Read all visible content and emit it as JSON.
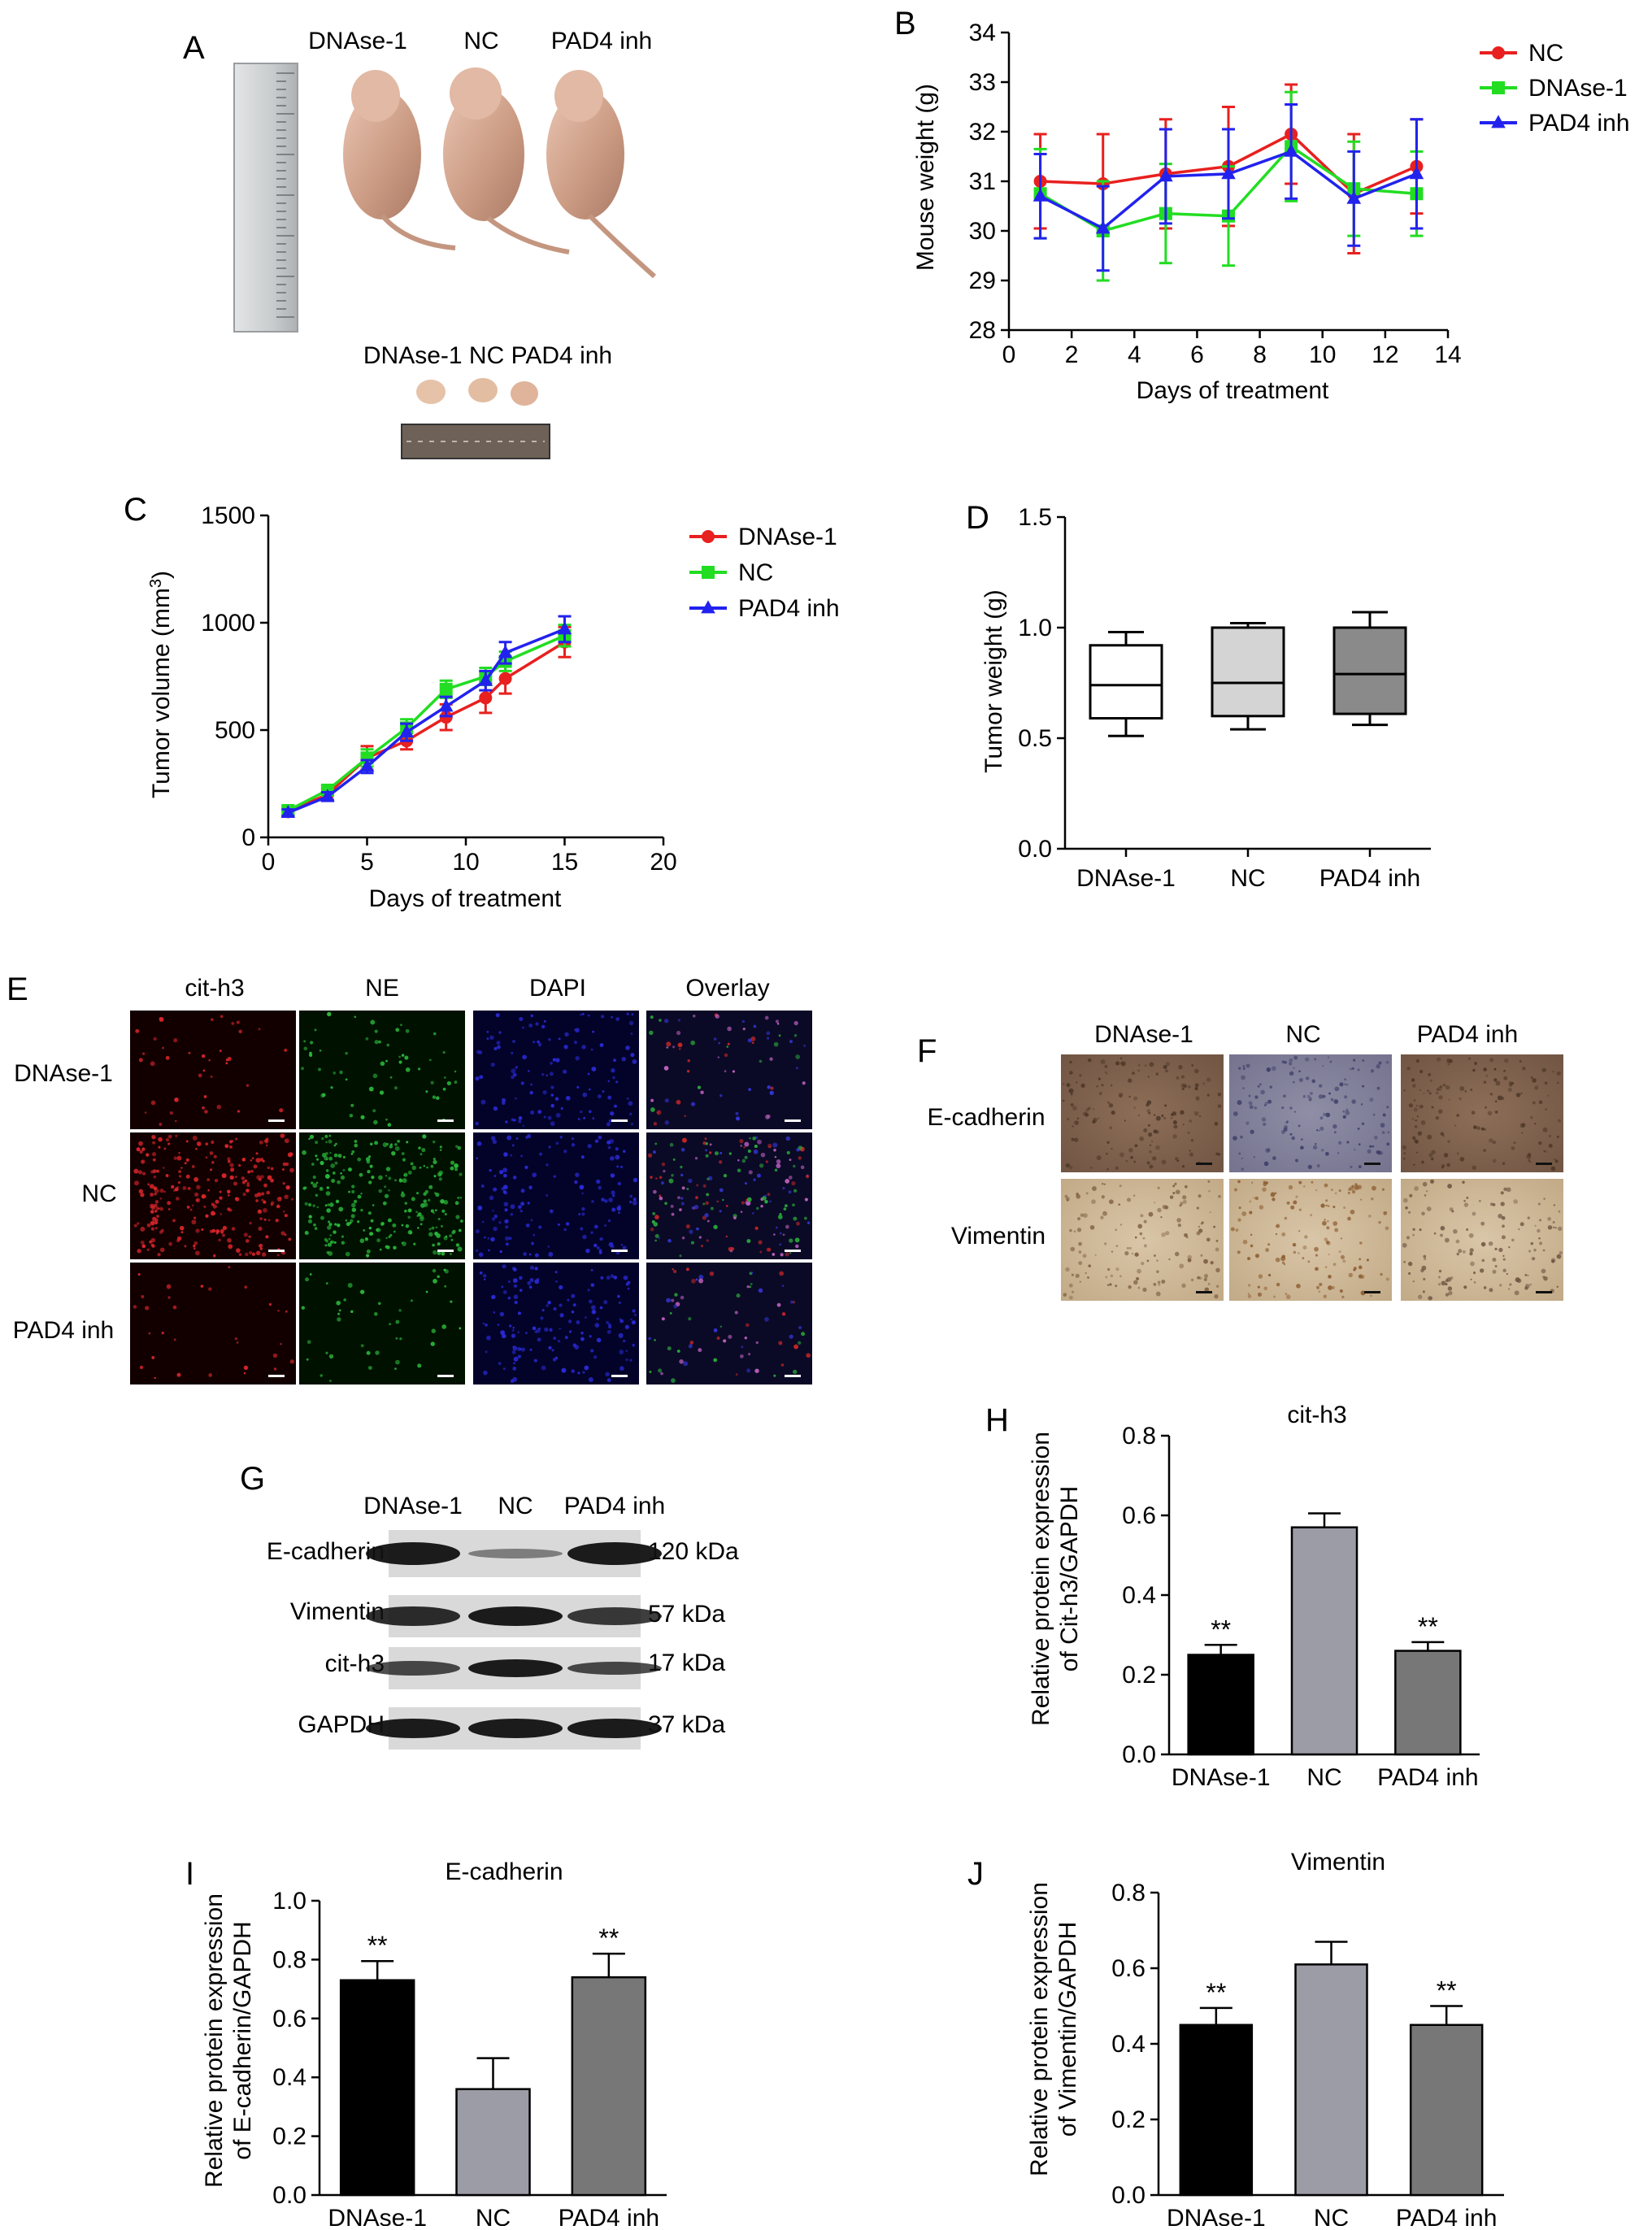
{
  "panels": {
    "A": {
      "letter": "A",
      "top_labels": [
        "DNAse-1",
        "NC",
        "PAD4 inh"
      ],
      "bottom_label": "DNAse-1 NC PAD4 inh"
    },
    "E": {
      "letter": "E",
      "columns": [
        "cit-h3",
        "NE",
        "DAPI",
        "Overlay"
      ],
      "rows": [
        "DNAse-1",
        "NC",
        "PAD4 inh"
      ]
    },
    "F": {
      "letter": "F",
      "columns": [
        "DNAse-1",
        "NC",
        "PAD4 inh"
      ],
      "rows": [
        "E-cadherin",
        "Vimentin"
      ]
    },
    "G": {
      "letter": "G",
      "columns": [
        "DNAse-1",
        "NC",
        "PAD4 inh"
      ],
      "rows": [
        "E-cadherin",
        "Vimentin",
        "cit-h3",
        "GAPDH"
      ],
      "sizes": [
        "120 kDa",
        "57 kDa",
        "17 kDa",
        "37 kDa"
      ]
    }
  },
  "chart_data": [
    {
      "id": "B",
      "letter": "B",
      "type": "line",
      "title": "",
      "xlabel": "Days of treatment",
      "ylabel": "Mouse weight (g)",
      "xlim": [
        0,
        14
      ],
      "ylim": [
        28,
        34
      ],
      "xticks": [
        0,
        2,
        4,
        6,
        8,
        10,
        12,
        14
      ],
      "yticks": [
        28,
        29,
        30,
        31,
        32,
        33,
        34
      ],
      "legend": "top-right",
      "x": [
        1,
        3,
        5,
        7,
        9,
        11,
        13
      ],
      "series": [
        {
          "name": "NC",
          "color": "#e8201f",
          "marker": "circle",
          "values": [
            31.0,
            30.95,
            31.15,
            31.3,
            31.95,
            30.75,
            31.3
          ],
          "errors": [
            0.95,
            1.0,
            1.1,
            1.2,
            1.0,
            1.2,
            0.95
          ]
        },
        {
          "name": "DNAse-1",
          "color": "#22dd22",
          "marker": "square",
          "values": [
            30.75,
            30.0,
            30.35,
            30.3,
            31.7,
            30.85,
            30.75
          ],
          "errors": [
            0.9,
            1.0,
            1.0,
            1.0,
            1.1,
            0.95,
            0.85
          ]
        },
        {
          "name": "PAD4 inh",
          "color": "#2222ee",
          "marker": "triangle",
          "values": [
            30.7,
            30.05,
            31.1,
            31.15,
            31.6,
            30.65,
            31.15
          ],
          "errors": [
            0.85,
            0.85,
            0.95,
            0.9,
            0.95,
            0.95,
            1.1
          ]
        }
      ]
    },
    {
      "id": "C",
      "letter": "C",
      "type": "line",
      "title": "",
      "xlabel": "Days of treatment",
      "ylabel": "Tumor volume (mm",
      "ylabel_sup": "3",
      "ylabel_end": ")",
      "xlim": [
        0,
        20
      ],
      "ylim": [
        0,
        1500
      ],
      "xticks": [
        0,
        5,
        10,
        15,
        20
      ],
      "yticks": [
        0,
        500,
        1000,
        1500
      ],
      "legend": "top-right",
      "x": [
        1,
        3,
        5,
        7,
        9,
        11,
        12,
        15
      ],
      "series": [
        {
          "name": "DNAse-1",
          "color": "#e8201f",
          "marker": "circle",
          "values": [
            120,
            200,
            370,
            450,
            560,
            650,
            740,
            910
          ],
          "errors": [
            20,
            25,
            55,
            40,
            60,
            70,
            70,
            70
          ]
        },
        {
          "name": "NC",
          "color": "#22dd22",
          "marker": "square",
          "values": [
            125,
            220,
            370,
            510,
            690,
            750,
            820,
            940
          ],
          "errors": [
            20,
            20,
            40,
            40,
            40,
            40,
            45,
            50
          ]
        },
        {
          "name": "PAD4 inh",
          "color": "#2222ee",
          "marker": "triangle",
          "values": [
            115,
            190,
            330,
            490,
            610,
            730,
            860,
            970
          ],
          "errors": [
            15,
            20,
            30,
            40,
            45,
            45,
            50,
            60
          ]
        }
      ]
    },
    {
      "id": "D",
      "letter": "D",
      "type": "box",
      "title": "",
      "xlabel": "",
      "ylabel": "Tumor weight (g)",
      "ylim": [
        0,
        1.5
      ],
      "yticks": [
        "0.0",
        "0.5",
        "1.0",
        "1.5"
      ],
      "categories": [
        "DNAse-1",
        "NC",
        "PAD4 inh"
      ],
      "fills": [
        "#ffffff",
        "#d4d4d4",
        "#8a8a8a"
      ],
      "boxes": [
        {
          "min": 0.51,
          "q1": 0.59,
          "median": 0.74,
          "q3": 0.92,
          "max": 0.98
        },
        {
          "min": 0.54,
          "q1": 0.6,
          "median": 0.75,
          "q3": 1.0,
          "max": 1.02
        },
        {
          "min": 0.56,
          "q1": 0.61,
          "median": 0.79,
          "q3": 1.0,
          "max": 1.07
        }
      ]
    },
    {
      "id": "H",
      "letter": "H",
      "type": "bar",
      "title": "cit-h3",
      "xlabel": "",
      "ylabel_lines": [
        "Relative protein expression",
        "of Cit-h3/GAPDH"
      ],
      "ylim": [
        0,
        0.8
      ],
      "yticks": [
        "0.0",
        "0.2",
        "0.4",
        "0.6",
        "0.8"
      ],
      "categories": [
        "DNAse-1",
        "NC",
        "PAD4 inh"
      ],
      "values": [
        0.25,
        0.57,
        0.26
      ],
      "errors": [
        0.025,
        0.035,
        0.022
      ],
      "significance": [
        "**",
        "",
        "**"
      ],
      "fills": [
        "#000000",
        "#9c9ca6",
        "#777777"
      ]
    },
    {
      "id": "I",
      "letter": "I",
      "type": "bar",
      "title": "E-cadherin",
      "xlabel": "",
      "ylabel_lines": [
        "Relative protein expression",
        "of E-cadherin/GAPDH"
      ],
      "ylim": [
        0,
        1.0
      ],
      "yticks": [
        "0.0",
        "0.2",
        "0.4",
        "0.6",
        "0.8",
        "1.0"
      ],
      "categories": [
        "DNAse-1",
        "NC",
        "PAD4 inh"
      ],
      "values": [
        0.73,
        0.36,
        0.74
      ],
      "errors": [
        0.065,
        0.105,
        0.08
      ],
      "significance": [
        "**",
        "",
        "**"
      ],
      "fills": [
        "#000000",
        "#9c9ca6",
        "#777777"
      ]
    },
    {
      "id": "J",
      "letter": "J",
      "type": "bar",
      "title": "Vimentin",
      "xlabel": "",
      "ylabel_lines": [
        "Relative protein expression",
        "of Vimentin/GAPDH"
      ],
      "ylim": [
        0,
        0.8
      ],
      "yticks": [
        "0.0",
        "0.2",
        "0.4",
        "0.6",
        "0.8"
      ],
      "categories": [
        "DNAse-1",
        "NC",
        "PAD4 inh"
      ],
      "values": [
        0.45,
        0.61,
        0.45
      ],
      "errors": [
        0.045,
        0.06,
        0.05
      ],
      "significance": [
        "**",
        "",
        "**"
      ],
      "fills": [
        "#000000",
        "#9c9ca6",
        "#777777"
      ]
    }
  ]
}
